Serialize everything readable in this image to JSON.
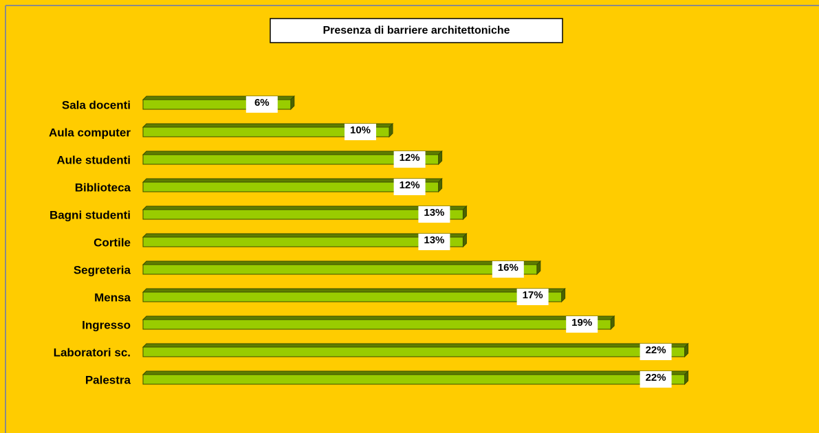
{
  "chart_data": {
    "type": "bar",
    "orientation": "horizontal",
    "title": "Presenza di barriere architettoniche",
    "categories": [
      "Sala docenti",
      "Aula computer",
      "Aule studenti",
      "Biblioteca",
      "Bagni studenti",
      "Cortile",
      "Segreteria",
      "Mensa",
      "Ingresso",
      "Laboratori sc.",
      "Palestra"
    ],
    "values": [
      6,
      10,
      12,
      12,
      13,
      13,
      16,
      17,
      19,
      22,
      22
    ],
    "value_labels": [
      "6%",
      "10%",
      "12%",
      "12%",
      "13%",
      "13%",
      "16%",
      "17%",
      "19%",
      "22%",
      "22%"
    ],
    "color": "#99cc00"
  }
}
